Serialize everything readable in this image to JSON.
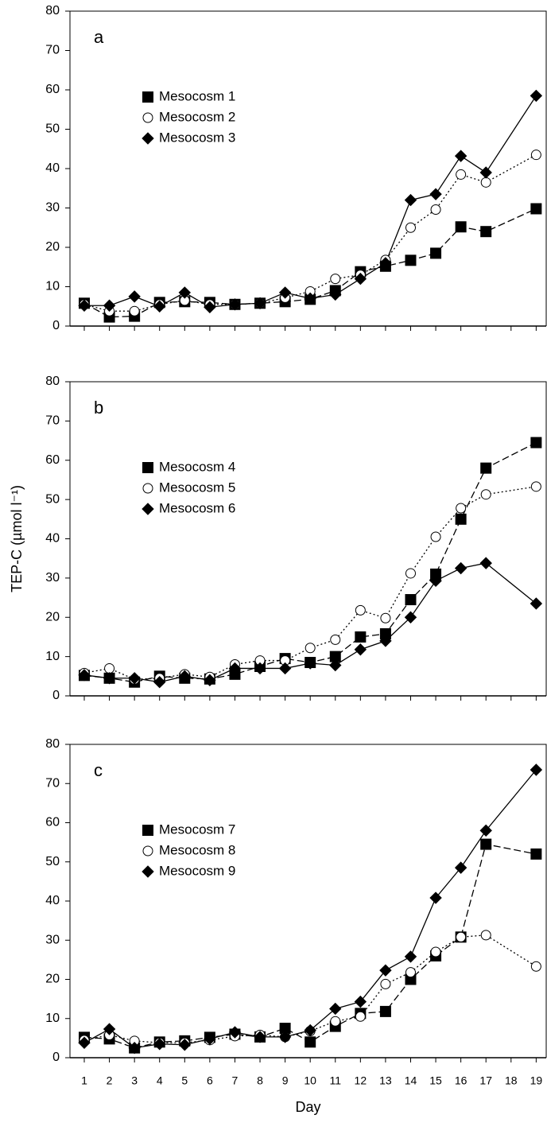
{
  "chart_data": [
    {
      "type": "line",
      "panel_label": "a",
      "xlim": [
        0.43,
        19.4
      ],
      "ylim": [
        0,
        80
      ],
      "yticks": [
        0,
        10,
        20,
        30,
        40,
        50,
        60,
        70,
        80
      ],
      "x": [
        1,
        2,
        3,
        4,
        5,
        6,
        7,
        8,
        9,
        10,
        11,
        12,
        13,
        14,
        15,
        16,
        17,
        19
      ],
      "series": [
        {
          "name": "Mesocosm 1",
          "color": "#000000",
          "marker": "square",
          "dash": "9,4",
          "values": [
            5.8,
            2.3,
            2.5,
            6.0,
            6.2,
            6.0,
            5.5,
            5.8,
            6.2,
            6.8,
            9.0,
            13.8,
            15.2,
            16.7,
            18.5,
            25.2,
            24.0,
            29.8
          ]
        },
        {
          "name": "Mesocosm 2",
          "color": "#000000",
          "marker": "circle",
          "dash": "2,3",
          "values": [
            5.5,
            3.8,
            3.8,
            5.5,
            6.5,
            5.5,
            5.5,
            5.8,
            7.2,
            8.8,
            12.0,
            13.0,
            16.8,
            25.0,
            29.6,
            38.5,
            36.5,
            43.5
          ]
        },
        {
          "name": "Mesocosm 3",
          "color": "#000000",
          "marker": "diamond",
          "dash": "none",
          "values": [
            5.2,
            5.2,
            7.5,
            5.0,
            8.5,
            4.8,
            5.5,
            5.8,
            8.5,
            7.0,
            8.0,
            12.0,
            16.0,
            32.0,
            33.5,
            43.2,
            39.0,
            58.5
          ]
        }
      ]
    },
    {
      "type": "line",
      "panel_label": "b",
      "y_label": "TEP-C (µmol l⁻¹)",
      "xlim": [
        0.43,
        19.4
      ],
      "ylim": [
        0,
        80
      ],
      "yticks": [
        0,
        10,
        20,
        30,
        40,
        50,
        60,
        70,
        80
      ],
      "x": [
        1,
        2,
        3,
        4,
        5,
        6,
        7,
        8,
        9,
        10,
        11,
        12,
        13,
        14,
        15,
        16,
        17,
        19
      ],
      "series": [
        {
          "name": "Mesocosm 4",
          "color": "#000000",
          "marker": "square",
          "dash": "9,4",
          "values": [
            5.2,
            4.5,
            3.5,
            5.0,
            4.5,
            4.3,
            5.5,
            7.5,
            9.5,
            8.5,
            10.0,
            15.0,
            15.8,
            24.5,
            31.0,
            45.0,
            58.0,
            64.5
          ]
        },
        {
          "name": "Mesocosm 5",
          "color": "#000000",
          "marker": "circle",
          "dash": "2,3",
          "values": [
            5.8,
            7.0,
            4.2,
            4.5,
            5.5,
            4.8,
            8.0,
            9.0,
            9.0,
            12.2,
            14.3,
            21.8,
            19.8,
            31.2,
            40.5,
            47.8,
            51.3,
            53.3
          ]
        },
        {
          "name": "Mesocosm 6",
          "color": "#000000",
          "marker": "diamond",
          "dash": "none",
          "values": [
            5.3,
            4.5,
            4.5,
            3.5,
            5.0,
            4.0,
            7.0,
            7.0,
            7.0,
            8.3,
            7.8,
            11.8,
            14.0,
            20.0,
            29.3,
            32.5,
            33.8,
            23.5
          ]
        }
      ]
    },
    {
      "type": "line",
      "panel_label": "c",
      "x_label": "Day",
      "xlim": [
        0.43,
        19.4
      ],
      "ylim": [
        0,
        80
      ],
      "yticks": [
        0,
        10,
        20,
        30,
        40,
        50,
        60,
        70,
        80
      ],
      "xticks": [
        1,
        2,
        3,
        4,
        5,
        6,
        7,
        8,
        9,
        10,
        11,
        12,
        13,
        14,
        15,
        16,
        17,
        18,
        19
      ],
      "x": [
        1,
        2,
        3,
        4,
        5,
        6,
        7,
        8,
        9,
        10,
        11,
        12,
        13,
        14,
        15,
        16,
        17,
        19
      ],
      "series": [
        {
          "name": "Mesocosm 7",
          "color": "#000000",
          "marker": "square",
          "dash": "9,4",
          "values": [
            5.2,
            4.8,
            2.5,
            4.0,
            4.3,
            5.2,
            6.0,
            5.3,
            7.5,
            4.0,
            8.0,
            11.3,
            11.8,
            20.0,
            26.0,
            30.8,
            54.5,
            52.0
          ]
        },
        {
          "name": "Mesocosm 8",
          "color": "#000000",
          "marker": "circle",
          "dash": "2,3",
          "values": [
            4.5,
            5.8,
            4.3,
            3.8,
            3.8,
            4.5,
            5.5,
            5.8,
            5.3,
            6.8,
            9.3,
            10.5,
            18.8,
            21.8,
            27.0,
            30.8,
            31.3,
            23.3
          ]
        },
        {
          "name": "Mesocosm 9",
          "color": "#000000",
          "marker": "diamond",
          "dash": "none",
          "values": [
            3.8,
            7.3,
            2.5,
            3.5,
            3.3,
            4.8,
            6.5,
            5.3,
            5.3,
            7.0,
            12.5,
            14.3,
            22.3,
            25.8,
            40.8,
            48.5,
            58.0,
            73.5
          ]
        }
      ]
    }
  ]
}
